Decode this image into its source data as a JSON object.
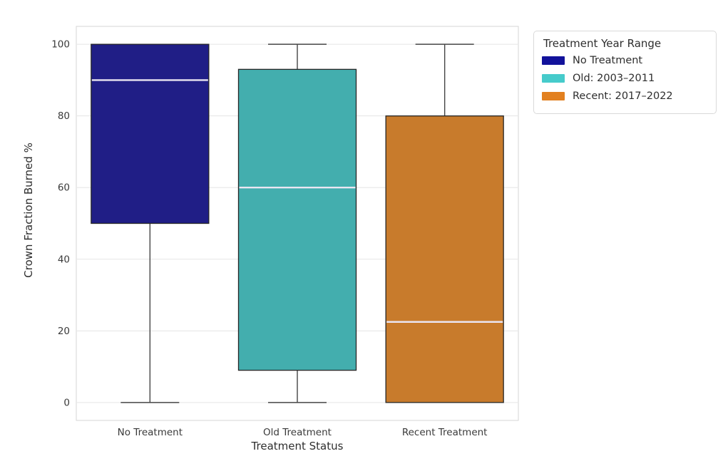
{
  "chart_data": {
    "type": "box",
    "title": "",
    "xlabel": "Treatment Status",
    "ylabel": "Crown Fraction Burned %",
    "categories": [
      "No Treatment",
      "Old Treatment",
      "Recent Treatment"
    ],
    "yticks": [
      0,
      20,
      40,
      60,
      80,
      100
    ],
    "ylim": [
      -5,
      105
    ],
    "grid": "horizontal-gridlines",
    "legend": {
      "title": "Treatment Year Range",
      "position": "outside-upper-right",
      "entries": [
        {
          "label": "No Treatment",
          "color": "#12129b"
        },
        {
          "label": "Old: 2003–2011",
          "color": "#46cbcb"
        },
        {
          "label": "Recent: 2017–2022",
          "color": "#e2801f"
        }
      ]
    },
    "series": [
      {
        "category": "No Treatment",
        "min": 0,
        "q1": 50,
        "median": 90,
        "q3": 100,
        "max": 100,
        "color": "#201e86"
      },
      {
        "category": "Old Treatment",
        "min": 0,
        "q1": 9,
        "median": 60,
        "q3": 93,
        "max": 100,
        "color": "#43aeae"
      },
      {
        "category": "Recent Treatment",
        "min": 0,
        "q1": 0,
        "median": 22.5,
        "q3": 80,
        "max": 100,
        "color": "#c87b2c"
      }
    ],
    "style": {
      "box_edge_color": "#262626",
      "whisker_color": "#454545",
      "median_color": "#eae6f2",
      "gridline_color": "#e5e5e5",
      "spine_color": "#d6d6d6",
      "tick_label_color": "#3a3a3a",
      "axis_label_color": "#2e2e2e",
      "background": "#ffffff"
    }
  }
}
